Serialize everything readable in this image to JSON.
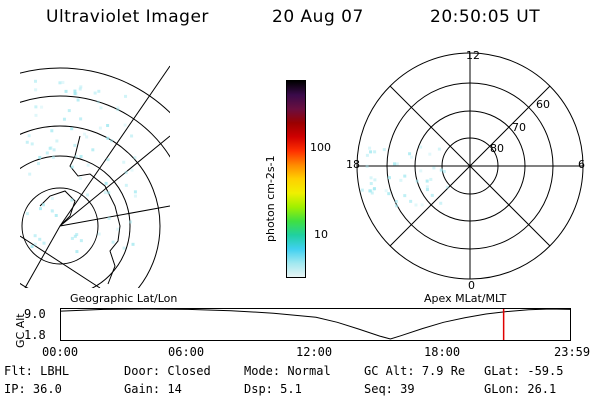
{
  "header": {
    "title": "Ultraviolet Imager",
    "date": "20 Aug 07",
    "time": "20:50:05 UT"
  },
  "left_map": {
    "caption": "Geographic Lat/Lon"
  },
  "colorbar": {
    "label": "photon cm-2s-1",
    "ticks": [
      "100",
      "10"
    ],
    "colors": [
      "#000000",
      "#3a0a4a",
      "#6a0f40",
      "#9a0000",
      "#d00000",
      "#ff3000",
      "#ff8a00",
      "#ffd000",
      "#f0f000",
      "#a0f000",
      "#40e040",
      "#20d0a0",
      "#40d0f0",
      "#a0e8f0",
      "#e8f4f4"
    ]
  },
  "right_polar": {
    "caption": "Apex MLat/MLT",
    "mlt_labels": [
      "12",
      "6",
      "0",
      "18"
    ],
    "lat_labels": [
      "60",
      "70",
      "80"
    ]
  },
  "altitude_plot": {
    "ylabel": "GC Alt",
    "yticks": [
      "9.0",
      "1.8"
    ],
    "xticks": [
      "00:00",
      "06:00",
      "12:00",
      "18:00",
      "23:59"
    ],
    "marker_time_hours": 20.83,
    "marker_color": "#e00000"
  },
  "footer": {
    "row1": [
      {
        "label": "Flt:",
        "value": "LBHL"
      },
      {
        "label": "Door:",
        "value": "Closed"
      },
      {
        "label": "Mode:",
        "value": "Normal"
      },
      {
        "label": "GC Alt:",
        "value": "7.9 Re"
      },
      {
        "label": "GLat:",
        "value": "-59.5"
      }
    ],
    "row2": [
      {
        "label": "IP:",
        "value": "36.0"
      },
      {
        "label": "Gain:",
        "value": "14"
      },
      {
        "label": "Dsp:",
        "value": "5.1"
      },
      {
        "label": "Seq:",
        "value": "39"
      },
      {
        "label": "GLon:",
        "value": "26.1"
      }
    ]
  }
}
